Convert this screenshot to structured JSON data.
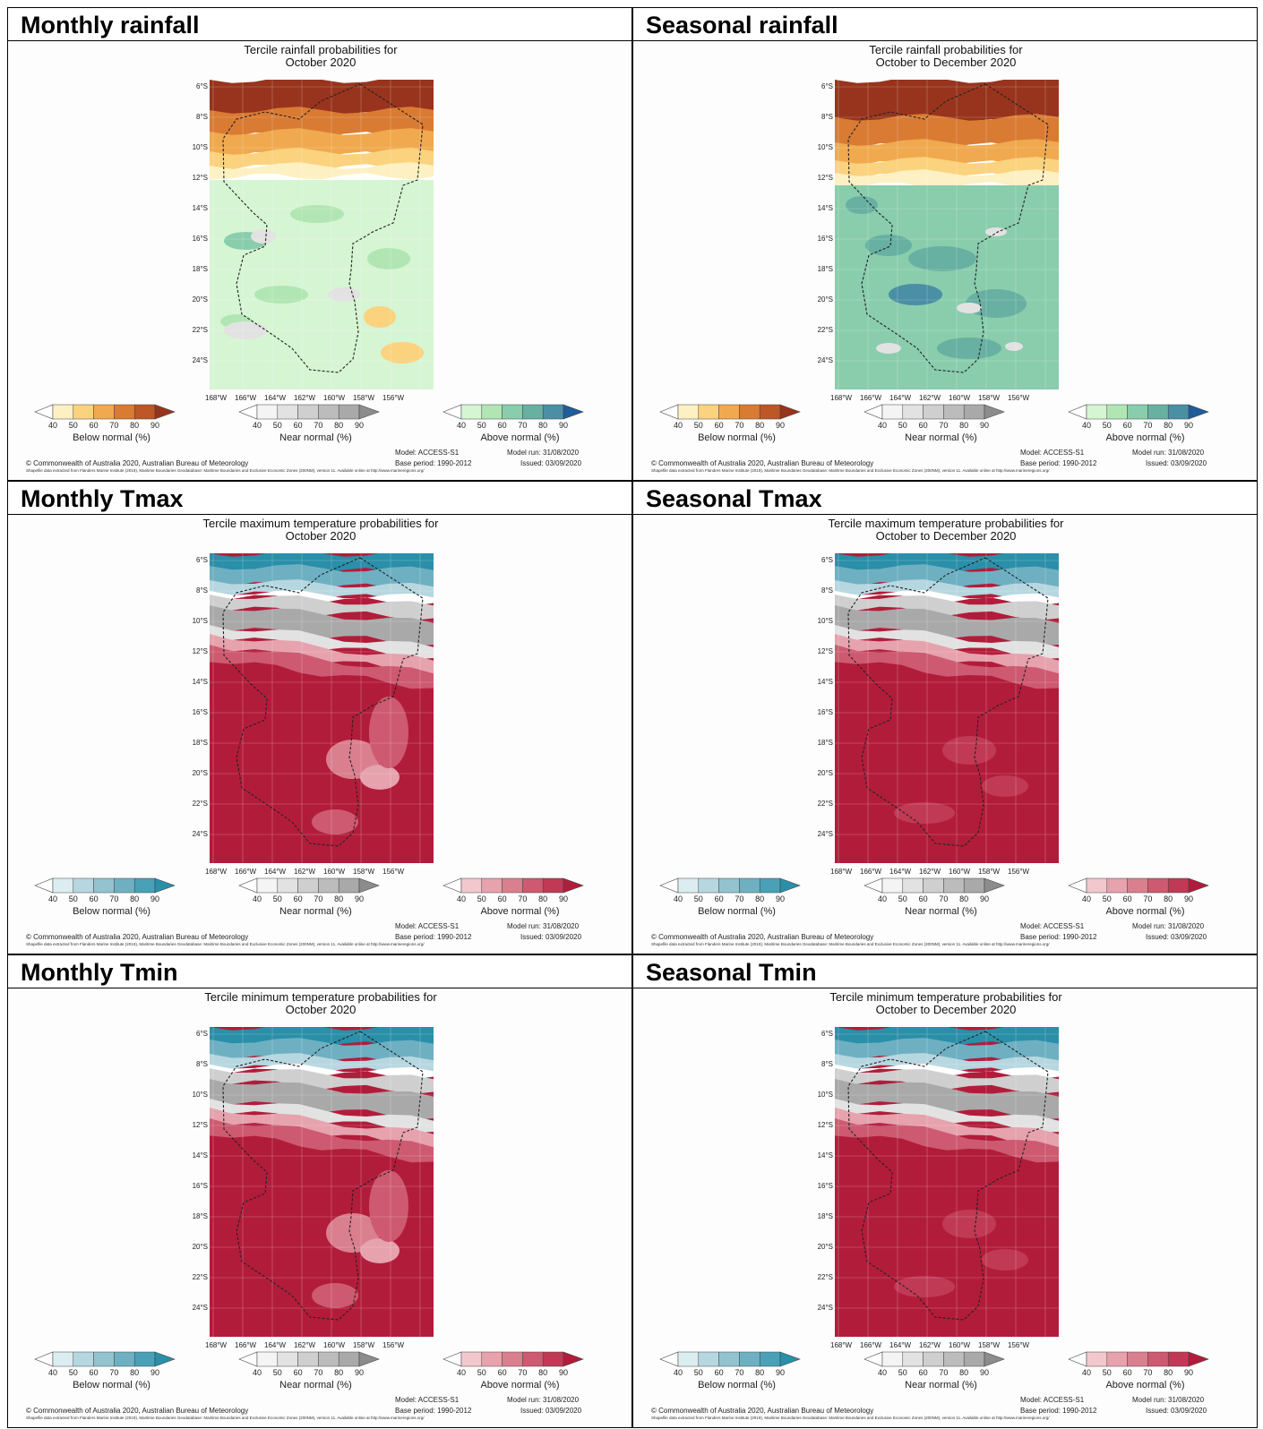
{
  "panels": [
    {
      "key": "monthly-rainfall",
      "heading": "Monthly rainfall",
      "title_line1": "Tercile rainfall probabilities for",
      "title_line2": "October 2020",
      "kind": "rainfall",
      "period": "monthly",
      "legends": [
        {
          "label": "Below normal (%)",
          "colors": [
            "#fdf0c2",
            "#fbd27e",
            "#f0a94e",
            "#d97b33",
            "#bd5727",
            "#98341d"
          ]
        },
        {
          "label": "Near normal (%)",
          "colors": [
            "#f4f4f4",
            "#e2e2e2",
            "#cfcfcf",
            "#bcbcbc",
            "#a9a9a9",
            "#8c8c8c"
          ]
        },
        {
          "label": "Above normal (%)",
          "colors": [
            "#d6f5d3",
            "#b1e6b4",
            "#89cdac",
            "#67b0a2",
            "#4b8fa5",
            "#1f5c9a"
          ]
        }
      ]
    },
    {
      "key": "seasonal-rainfall",
      "heading": "Seasonal rainfall",
      "title_line1": "Tercile rainfall probabilities for",
      "title_line2": "October to December 2020",
      "kind": "rainfall",
      "period": "seasonal",
      "legends": [
        {
          "label": "Below normal (%)",
          "colors": [
            "#fdf0c2",
            "#fbd27e",
            "#f0a94e",
            "#d97b33",
            "#bd5727",
            "#98341d"
          ]
        },
        {
          "label": "Near normal (%)",
          "colors": [
            "#f4f4f4",
            "#e2e2e2",
            "#cfcfcf",
            "#bcbcbc",
            "#a9a9a9",
            "#8c8c8c"
          ]
        },
        {
          "label": "Above normal (%)",
          "colors": [
            "#d6f5d3",
            "#b1e6b4",
            "#89cdac",
            "#67b0a2",
            "#4b8fa5",
            "#1f5c9a"
          ]
        }
      ]
    },
    {
      "key": "monthly-tmax",
      "heading": "Monthly Tmax",
      "title_line1": "Tercile maximum temperature probabilities for",
      "title_line2": "October 2020",
      "kind": "temp",
      "period": "monthly",
      "legends": [
        {
          "label": "Below normal (%)",
          "colors": [
            "#dcedf2",
            "#b7d7e0",
            "#92c3cf",
            "#6eb0c2",
            "#4aa0b6",
            "#2a8fa8"
          ]
        },
        {
          "label": "Near normal (%)",
          "colors": [
            "#f4f4f4",
            "#e2e2e2",
            "#cfcfcf",
            "#bcbcbc",
            "#a9a9a9",
            "#8c8c8c"
          ]
        },
        {
          "label": "Above normal (%)",
          "colors": [
            "#f2c7cd",
            "#e6a2ad",
            "#d97f8e",
            "#cd5a70",
            "#c03a55",
            "#b21c3b"
          ]
        }
      ]
    },
    {
      "key": "seasonal-tmax",
      "heading": "Seasonal Tmax",
      "title_line1": "Tercile maximum temperature probabilities for",
      "title_line2": "October to December 2020",
      "kind": "temp",
      "period": "seasonal",
      "legends": [
        {
          "label": "Below normal (%)",
          "colors": [
            "#dcedf2",
            "#b7d7e0",
            "#92c3cf",
            "#6eb0c2",
            "#4aa0b6",
            "#2a8fa8"
          ]
        },
        {
          "label": "Near normal (%)",
          "colors": [
            "#f4f4f4",
            "#e2e2e2",
            "#cfcfcf",
            "#bcbcbc",
            "#a9a9a9",
            "#8c8c8c"
          ]
        },
        {
          "label": "Above normal (%)",
          "colors": [
            "#f2c7cd",
            "#e6a2ad",
            "#d97f8e",
            "#cd5a70",
            "#c03a55",
            "#b21c3b"
          ]
        }
      ]
    },
    {
      "key": "monthly-tmin",
      "heading": "Monthly Tmin",
      "title_line1": "Tercile minimum temperature probabilities for",
      "title_line2": "October 2020",
      "kind": "temp",
      "period": "monthly",
      "legends": [
        {
          "label": "Below normal (%)",
          "colors": [
            "#dcedf2",
            "#b7d7e0",
            "#92c3cf",
            "#6eb0c2",
            "#4aa0b6",
            "#2a8fa8"
          ]
        },
        {
          "label": "Near normal (%)",
          "colors": [
            "#f4f4f4",
            "#e2e2e2",
            "#cfcfcf",
            "#bcbcbc",
            "#a9a9a9",
            "#8c8c8c"
          ]
        },
        {
          "label": "Above normal (%)",
          "colors": [
            "#f2c7cd",
            "#e6a2ad",
            "#d97f8e",
            "#cd5a70",
            "#c03a55",
            "#b21c3b"
          ]
        }
      ]
    },
    {
      "key": "seasonal-tmin",
      "heading": "Seasonal Tmin",
      "title_line1": "Tercile minimum temperature probabilities for",
      "title_line2": "October to December 2020",
      "kind": "temp",
      "period": "seasonal",
      "legends": [
        {
          "label": "Below normal (%)",
          "colors": [
            "#dcedf2",
            "#b7d7e0",
            "#92c3cf",
            "#6eb0c2",
            "#4aa0b6",
            "#2a8fa8"
          ]
        },
        {
          "label": "Near normal (%)",
          "colors": [
            "#f4f4f4",
            "#e2e2e2",
            "#cfcfcf",
            "#bcbcbc",
            "#a9a9a9",
            "#8c8c8c"
          ]
        },
        {
          "label": "Above normal (%)",
          "colors": [
            "#f2c7cd",
            "#e6a2ad",
            "#d97f8e",
            "#cd5a70",
            "#c03a55",
            "#b21c3b"
          ]
        }
      ]
    }
  ],
  "lat_labels": [
    "6°S",
    "8°S",
    "10°S",
    "12°S",
    "14°S",
    "16°S",
    "18°S",
    "20°S",
    "22°S",
    "24°S"
  ],
  "lon_labels": [
    "168°W",
    "166°W",
    "164°W",
    "162°W",
    "160°W",
    "158°W",
    "156°W"
  ],
  "legend_ticks": [
    "40",
    "50",
    "60",
    "70",
    "80",
    "90"
  ],
  "footer": {
    "copyright": "© Commonwealth of Australia 2020, Australian Bureau of Meteorology",
    "model": "Model: ACCESS-S1",
    "base_period": "Base period: 1990-2012",
    "model_run": "Model run: 31/08/2020",
    "issued": "Issued: 03/09/2020",
    "shapefile": "Shapefile data extracted from Flanders Marine Institute (2019), Maritime Boundaries Geodatabase: Maritime Boundaries and Exclusive Economic Zones (200NM), version 11. Available online at http://www.marineregions.org/"
  }
}
